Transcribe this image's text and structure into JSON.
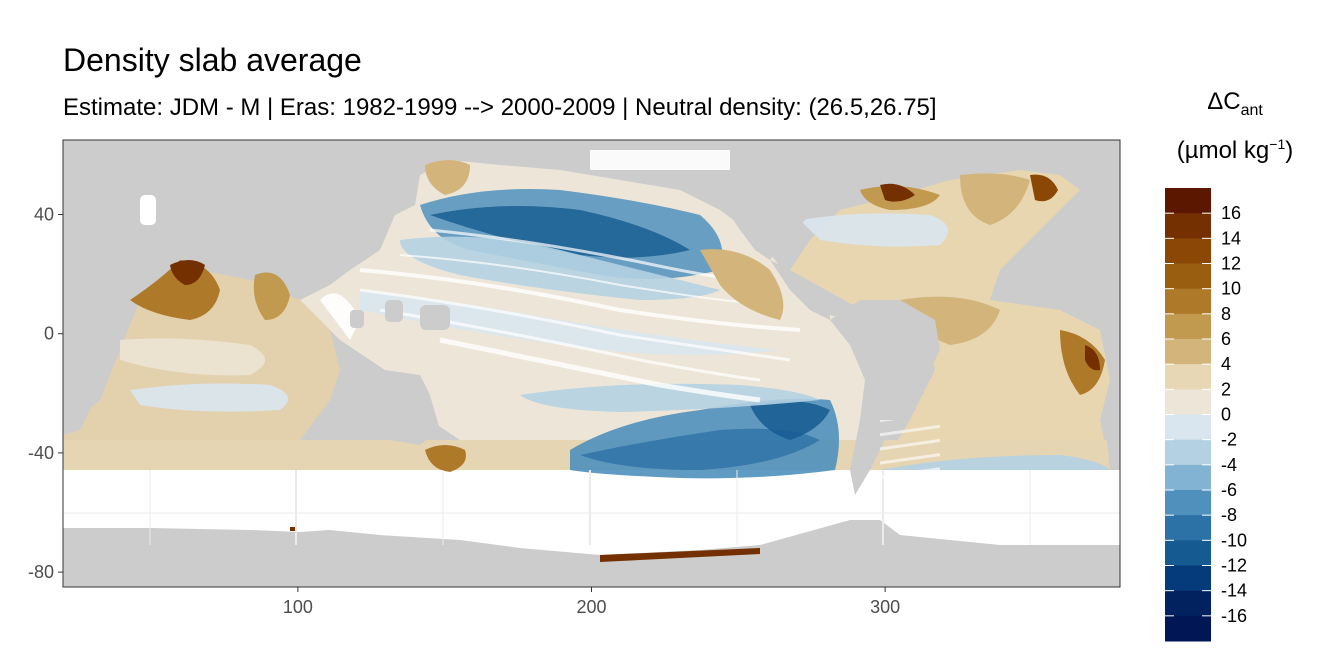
{
  "title": "Density slab average",
  "subtitle": "Estimate: JDM - M | Eras: 1982-1999 --> 2000-2009 | Neutral density: (26.5,26.75]",
  "map": {
    "projection": "plate-carree longitude 20-380, latitude -85 to 65",
    "background_fill": "#cccccc",
    "no_data_fill": "#ffffff",
    "x_ticks": [
      100,
      200,
      300
    ],
    "y_ticks": [
      40,
      0,
      -40,
      -80
    ],
    "xlim": [
      20,
      380
    ],
    "ylim": [
      -85,
      65
    ]
  },
  "legend": {
    "title_symbol": "ΔC",
    "title_sub": "ant",
    "unit_prefix": "(µmol kg",
    "unit_sup": "−1",
    "unit_suffix": ")",
    "labels": [
      "16",
      "14",
      "12",
      "10",
      "8",
      "6",
      "4",
      "2",
      "0",
      "-2",
      "-4",
      "-6",
      "-8",
      "-10",
      "-12",
      "-14",
      "-16"
    ],
    "colors": [
      "#5c1700",
      "#743000",
      "#8a4706",
      "#9a5e10",
      "#ae7a2a",
      "#c19a50",
      "#d3b57c",
      "#e7d7b4",
      "#ede6d8",
      "#d9e6ef",
      "#b4d1e3",
      "#82b3d2",
      "#4f90bd",
      "#2d72a6",
      "#155a90",
      "#053b7b",
      "#02215f",
      "#001655"
    ]
  }
}
